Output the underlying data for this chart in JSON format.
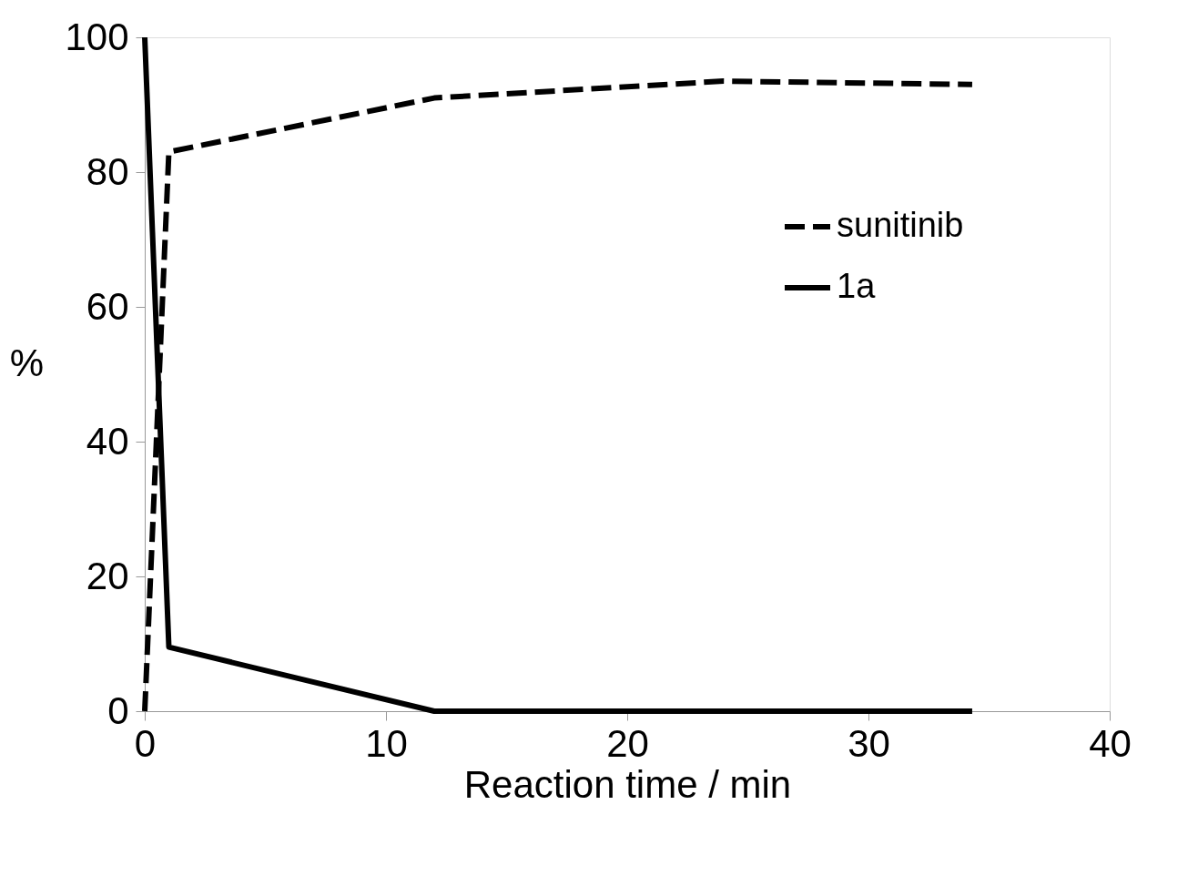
{
  "chart_data": {
    "type": "line",
    "xlabel": "Reaction time / min",
    "ylabel": "%",
    "xlim": [
      0,
      40
    ],
    "xticks": [
      0,
      10,
      20,
      30,
      40
    ],
    "ylim": [
      0,
      100
    ],
    "yticks": [
      0,
      20,
      40,
      60,
      80,
      100
    ],
    "grid": false,
    "legend": "right",
    "marker": "none",
    "series": [
      {
        "name": "sunitinib",
        "color": "#000000",
        "line_style": "dashed",
        "x": [
          0,
          1,
          12,
          24,
          34.3
        ],
        "values": [
          0,
          83,
          91,
          93.5,
          93
        ]
      },
      {
        "name": "1a",
        "color": "#000000",
        "line_style": "solid",
        "x": [
          0,
          1,
          12,
          34.3
        ],
        "values": [
          100,
          9.5,
          0,
          0
        ]
      }
    ]
  }
}
